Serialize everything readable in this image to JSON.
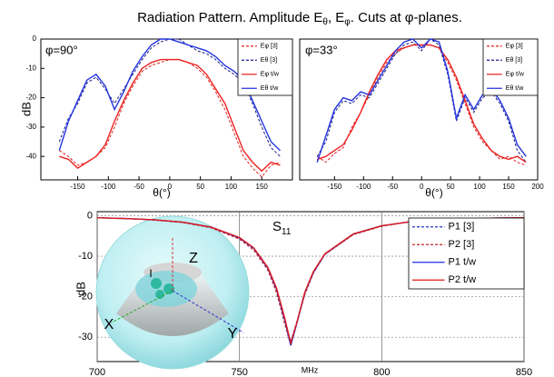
{
  "title_parts": [
    "Radiation Pattern. Amplitude E",
    "θ",
    ", E",
    "φ",
    ". Cuts at φ-planes."
  ],
  "chart_data": [
    {
      "type": "line",
      "annotation": "φ=90°",
      "ylabel": "dB",
      "xlabel": "θ(°)",
      "x": [
        -180,
        -165,
        -150,
        -135,
        -120,
        -105,
        -90,
        -75,
        -60,
        -45,
        -30,
        -15,
        0,
        15,
        30,
        45,
        60,
        75,
        90,
        105,
        120,
        135,
        150,
        165,
        180
      ],
      "xlim": [
        -210,
        200
      ],
      "xticks": [
        -150,
        -100,
        -50,
        0,
        50,
        100,
        150
      ],
      "ylim": [
        -48,
        0
      ],
      "yticks": [
        0,
        -10,
        -20,
        -30,
        -40
      ],
      "series": [
        {
          "name": "Eφ [3]",
          "color": "#e02020",
          "linestyle": "dashed",
          "values": [
            -38,
            -40,
            -43,
            -42,
            -40,
            -37,
            -30,
            -22,
            -16,
            -11,
            -9,
            -8,
            -7,
            -7,
            -8,
            -10,
            -13,
            -18,
            -24,
            -32,
            -40,
            -44,
            -47,
            -43,
            -42
          ]
        },
        {
          "name": "Eθ [3]",
          "color": "#1a1a8c",
          "linestyle": "dashed",
          "values": [
            -35,
            -27,
            -22,
            -15,
            -13,
            -17,
            -22,
            -17,
            -12,
            -7,
            -3,
            -1,
            0,
            0,
            -2,
            -4,
            -5,
            -7,
            -10,
            -12,
            -15,
            -22,
            -30,
            -37,
            -40
          ]
        },
        {
          "name": "Eφ t/w",
          "color": "#ee2222",
          "linestyle": "solid",
          "values": [
            -40,
            -41,
            -44,
            -42,
            -40,
            -36,
            -28,
            -21,
            -15,
            -10,
            -8,
            -7,
            -7,
            -7,
            -8,
            -9,
            -12,
            -17,
            -22,
            -30,
            -38,
            -42,
            -45,
            -42,
            -43
          ]
        },
        {
          "name": "Eθ t/w",
          "color": "#2233dd",
          "linestyle": "solid",
          "values": [
            -38,
            -28,
            -21,
            -14,
            -12,
            -16,
            -24,
            -18,
            -11,
            -6,
            -2,
            0,
            0,
            -1,
            -2,
            -3,
            -4,
            -6,
            -9,
            -11,
            -14,
            -21,
            -28,
            -35,
            -38
          ]
        }
      ]
    },
    {
      "type": "line",
      "annotation": "φ=33°",
      "xlabel": "θ(°)",
      "x": [
        -180,
        -165,
        -150,
        -135,
        -120,
        -105,
        -90,
        -75,
        -60,
        -45,
        -30,
        -15,
        0,
        15,
        30,
        45,
        60,
        75,
        90,
        105,
        120,
        135,
        150,
        165,
        180
      ],
      "xlim": [
        -210,
        200
      ],
      "xticks": [
        -150,
        -100,
        -50,
        0,
        50,
        100,
        150,
        200
      ],
      "ylim": [
        -48,
        0
      ],
      "series": [
        {
          "name": "Eφ [3]",
          "color": "#e02020",
          "linestyle": "dashed",
          "values": [
            -40,
            -42,
            -39,
            -37,
            -30,
            -25,
            -19,
            -13,
            -8,
            -5,
            -3,
            -2,
            -2,
            -2,
            -3,
            -8,
            -14,
            -22,
            -30,
            -35,
            -38,
            -41,
            -40,
            -42,
            -43
          ]
        },
        {
          "name": "Eθ [3]",
          "color": "#1a1a8c",
          "linestyle": "dashed",
          "values": [
            -40,
            -35,
            -25,
            -21,
            -22,
            -19,
            -20,
            -15,
            -10,
            -5,
            -2,
            -1,
            -4,
            0,
            -2,
            -12,
            -28,
            -20,
            -25,
            -20,
            -18,
            -22,
            -28,
            -38,
            -42
          ]
        },
        {
          "name": "Eφ t/w",
          "color": "#ee2222",
          "linestyle": "solid",
          "values": [
            -41,
            -40,
            -38,
            -36,
            -31,
            -25,
            -18,
            -12,
            -7,
            -4,
            -3,
            -2,
            -2,
            -2,
            -3,
            -7,
            -13,
            -21,
            -29,
            -34,
            -38,
            -40,
            -41,
            -40,
            -42
          ]
        },
        {
          "name": "Eθ t/w",
          "color": "#2233dd",
          "linestyle": "solid",
          "values": [
            -42,
            -33,
            -24,
            -20,
            -21,
            -18,
            -19,
            -14,
            -9,
            -4,
            -1,
            0,
            -3,
            0,
            -1,
            -11,
            -27,
            -19,
            -24,
            -19,
            -17,
            -21,
            -27,
            -36,
            -40
          ]
        }
      ]
    },
    {
      "type": "line",
      "title_parts": [
        "S",
        "11"
      ],
      "ylabel": "dB",
      "xlabel": "MHz",
      "grid": true,
      "annotations": [
        "Z",
        "X",
        "Y",
        "I"
      ],
      "x": [
        700,
        710,
        720,
        730,
        740,
        750,
        755,
        760,
        763,
        766,
        768,
        770,
        773,
        776,
        780,
        790,
        800,
        810,
        820,
        830,
        840,
        850
      ],
      "xlim": [
        700,
        850
      ],
      "xticks": [
        700,
        750,
        800,
        850
      ],
      "ylim": [
        -36,
        1
      ],
      "yticks": [
        0,
        -10,
        -20,
        -30
      ],
      "series": [
        {
          "name": "P1 [3]",
          "color": "#2233cc",
          "linestyle": "dashed",
          "values": [
            -0.5,
            -0.7,
            -1,
            -1.6,
            -2.9,
            -5.6,
            -8.2,
            -13,
            -18.5,
            -26,
            -31,
            -26.5,
            -19,
            -14,
            -9.5,
            -4.6,
            -2.5,
            -1.5,
            -1,
            -0.8,
            -0.6,
            -0.5
          ]
        },
        {
          "name": "P2 [3]",
          "color": "#cc2222",
          "linestyle": "dashed",
          "values": [
            -0.5,
            -0.7,
            -1.1,
            -1.7,
            -3,
            -5.8,
            -8.5,
            -13.5,
            -19,
            -27,
            -32,
            -27,
            -19.5,
            -14.2,
            -9.6,
            -4.7,
            -2.6,
            -1.5,
            -1,
            -0.8,
            -0.6,
            -0.5
          ]
        },
        {
          "name": "P1 t/w",
          "color": "#1a2ee0",
          "linestyle": "solid",
          "values": [
            -0.5,
            -0.7,
            -1,
            -1.6,
            -2.8,
            -5.5,
            -8,
            -13,
            -18,
            -26,
            -32,
            -27,
            -19,
            -14,
            -9.5,
            -4.5,
            -2.5,
            -1.5,
            -1,
            -0.8,
            -0.6,
            -0.5
          ]
        },
        {
          "name": "P2 t/w",
          "color": "#e01a1a",
          "linestyle": "solid",
          "values": [
            -0.5,
            -0.7,
            -1,
            -1.6,
            -2.8,
            -5.4,
            -7.9,
            -12.8,
            -17.8,
            -25.5,
            -31.5,
            -26.8,
            -18.8,
            -13.8,
            -9.4,
            -4.5,
            -2.5,
            -1.5,
            -1,
            -0.8,
            -0.6,
            -0.5
          ]
        }
      ]
    }
  ]
}
